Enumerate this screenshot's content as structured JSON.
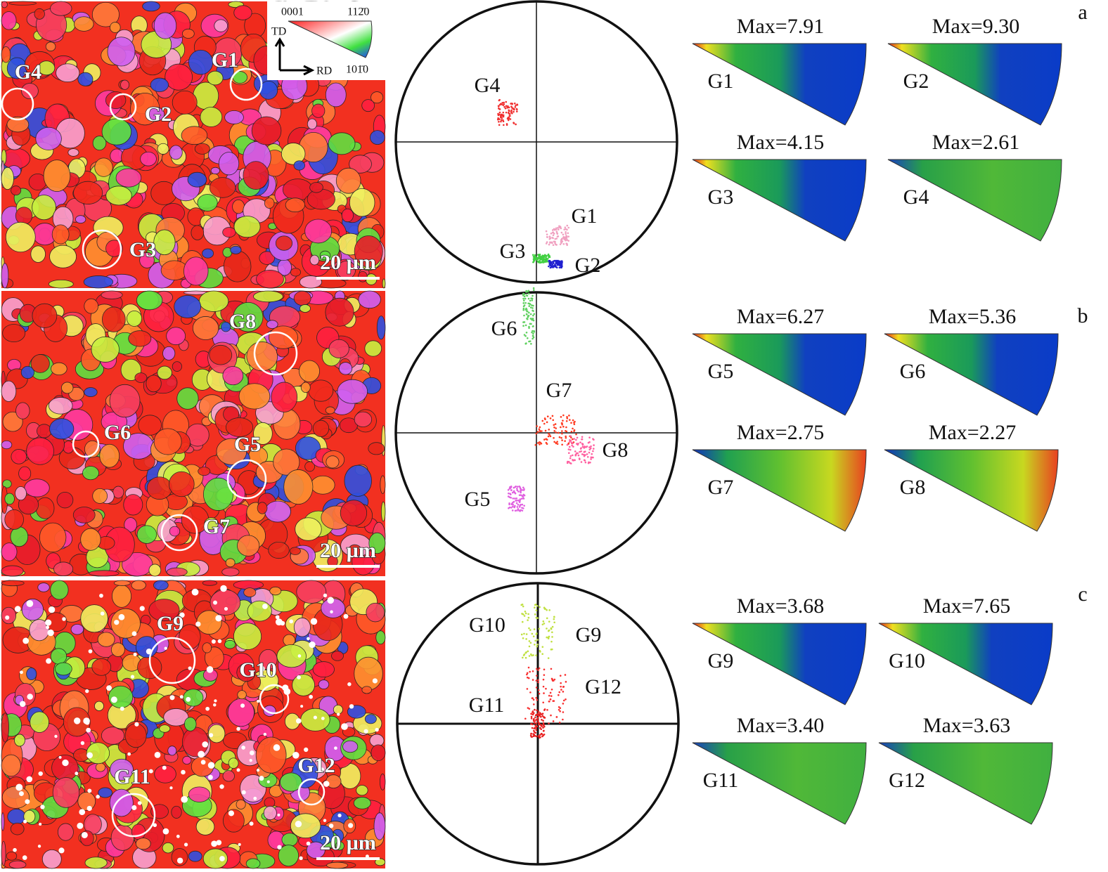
{
  "legend": {
    "corners": [
      "0001",
      "112̄0",
      "101̄0"
    ],
    "td": "TD",
    "rd": "RD"
  },
  "rows": [
    {
      "letter": "a",
      "scale_bar": "20 µm",
      "map_grains": [
        "G4",
        "G2",
        "G1",
        "G3"
      ],
      "pole_grains": [
        "G4",
        "G1",
        "G3",
        "G2"
      ],
      "ipf": [
        {
          "max": "Max=7.91",
          "grain": "G1"
        },
        {
          "max": "Max=9.30",
          "grain": "G2"
        },
        {
          "max": "Max=4.15",
          "grain": "G3"
        },
        {
          "max": "Max=2.61",
          "grain": "G4"
        }
      ]
    },
    {
      "letter": "b",
      "scale_bar": "20 µm",
      "map_grains": [
        "G8",
        "G6",
        "G5",
        "G7"
      ],
      "pole_grains": [
        "G6",
        "G7",
        "G8",
        "G5"
      ],
      "ipf": [
        {
          "max": "Max=6.27",
          "grain": "G5"
        },
        {
          "max": "Max=5.36",
          "grain": "G6"
        },
        {
          "max": "Max=2.75",
          "grain": "G7"
        },
        {
          "max": "Max=2.27",
          "grain": "G8"
        }
      ]
    },
    {
      "letter": "c",
      "scale_bar": "20 µm",
      "map_grains": [
        "G9",
        "G10",
        "G11",
        "G12"
      ],
      "pole_grains": [
        "G10",
        "G9",
        "G12",
        "G11"
      ],
      "ipf": [
        {
          "max": "Max=3.68",
          "grain": "G9"
        },
        {
          "max": "Max=7.65",
          "grain": "G10"
        },
        {
          "max": "Max=3.40",
          "grain": "G11"
        },
        {
          "max": "Max=3.63",
          "grain": "G12"
        }
      ]
    }
  ]
}
